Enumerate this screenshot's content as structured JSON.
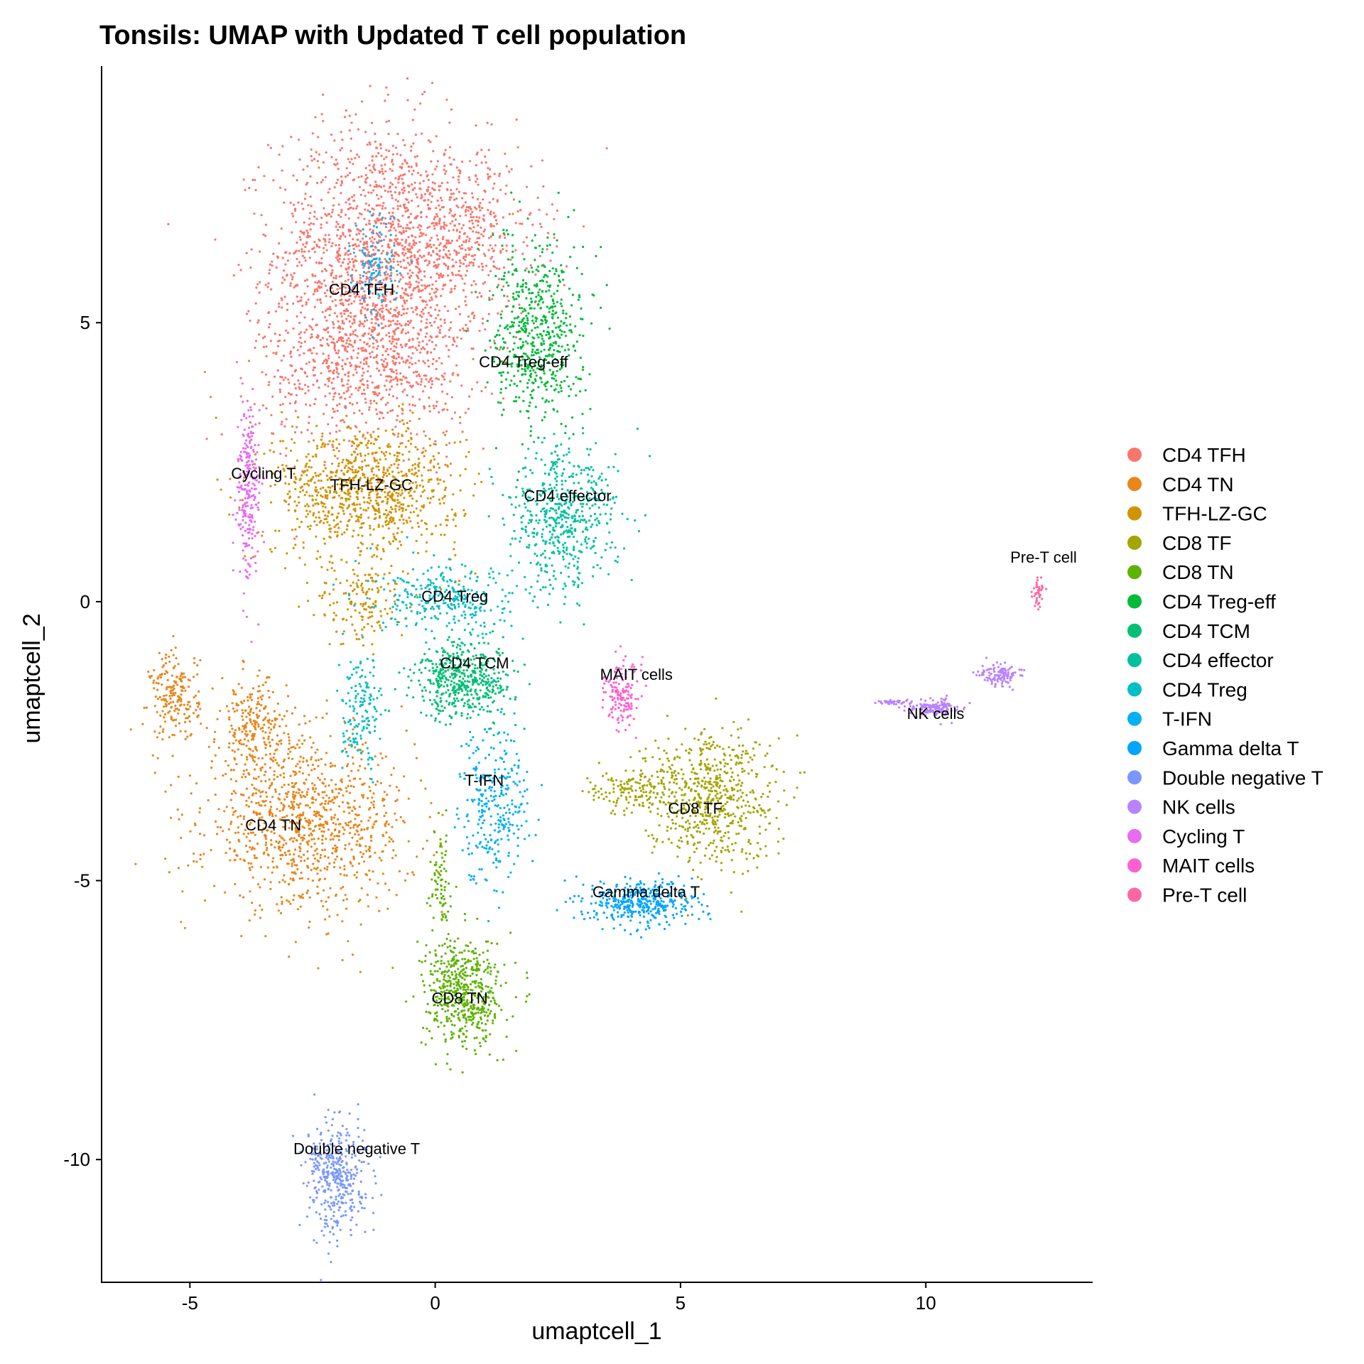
{
  "chart_data": {
    "type": "scatter",
    "title": "Tonsils: UMAP with Updated T cell population",
    "xlabel": "umaptcell_1",
    "ylabel": "umaptcell_2",
    "xlim": [
      -6.8,
      13.4
    ],
    "ylim": [
      -12.2,
      9.6
    ],
    "xticks": [
      -5,
      0,
      5,
      10
    ],
    "yticks": [
      -10,
      -5,
      0,
      5
    ],
    "xtick_labels": [
      "-5",
      "0",
      "5",
      "10"
    ],
    "ytick_labels": [
      "-10",
      "-5",
      "0",
      "5"
    ],
    "grid": false,
    "legend_position": "right",
    "clusters": [
      {
        "name": "CD4 TFH",
        "color": "#F8766D",
        "label_at": [
          -1.5,
          5.5
        ],
        "blobs": [
          [
            -1.2,
            6.2,
            2.1,
            2.4,
            1500
          ],
          [
            -1.4,
            4.3,
            2.2,
            1.5,
            700
          ],
          [
            0.6,
            6.6,
            1.6,
            1.4,
            400
          ]
        ]
      },
      {
        "name": "CD4 TN",
        "color": "#E7861B",
        "label_at": [
          -3.3,
          -4.1
        ],
        "blobs": [
          [
            -2.6,
            -4.0,
            2.1,
            1.5,
            1000
          ],
          [
            -5.3,
            -1.7,
            0.5,
            0.8,
            200
          ],
          [
            -3.7,
            -2.3,
            0.7,
            0.9,
            250
          ]
        ]
      },
      {
        "name": "TFH-LZ-GC",
        "color": "#D39200",
        "label_at": [
          -1.3,
          2.0
        ],
        "blobs": [
          [
            -1.4,
            2.0,
            1.9,
            1.2,
            900
          ],
          [
            -1.5,
            0.0,
            0.9,
            0.8,
            150
          ]
        ]
      },
      {
        "name": "CD8 TF",
        "color": "#A3A500",
        "label_at": [
          5.3,
          -3.8
        ],
        "blobs": [
          [
            5.6,
            -3.5,
            1.3,
            1.2,
            650
          ],
          [
            4.0,
            -3.4,
            0.9,
            0.4,
            150
          ]
        ]
      },
      {
        "name": "CD8 TN",
        "color": "#5EB300",
        "label_at": [
          0.5,
          -7.2
        ],
        "blobs": [
          [
            0.6,
            -7.0,
            0.8,
            1.0,
            550
          ],
          [
            0.1,
            -5.0,
            0.2,
            0.9,
            80
          ]
        ]
      },
      {
        "name": "CD4 Treg-eff",
        "color": "#00BA38",
        "label_at": [
          1.8,
          4.2
        ],
        "blobs": [
          [
            2.1,
            4.8,
            0.9,
            1.6,
            600
          ]
        ]
      },
      {
        "name": "CD4 TCM",
        "color": "#00BF74",
        "label_at": [
          0.8,
          -1.2
        ],
        "blobs": [
          [
            0.6,
            -1.4,
            1.0,
            0.7,
            500
          ]
        ]
      },
      {
        "name": "CD4 effector",
        "color": "#00C19F",
        "label_at": [
          2.7,
          1.8
        ],
        "blobs": [
          [
            2.6,
            1.5,
            1.1,
            1.3,
            550
          ]
        ]
      },
      {
        "name": "CD4 Treg",
        "color": "#00BFC4",
        "label_at": [
          0.4,
          0.0
        ],
        "blobs": [
          [
            0.3,
            0.0,
            1.5,
            0.6,
            300
          ],
          [
            -1.5,
            -2.0,
            0.4,
            1.0,
            150
          ]
        ]
      },
      {
        "name": "T-IFN",
        "color": "#00B0F6",
        "label_at": [
          1.0,
          -3.3
        ],
        "blobs": [
          [
            1.2,
            -3.6,
            0.7,
            1.4,
            300
          ],
          [
            -1.2,
            6.0,
            0.5,
            0.9,
            120
          ]
        ]
      },
      {
        "name": "Gamma delta T",
        "color": "#00A5FF",
        "label_at": [
          4.3,
          -5.3
        ],
        "blobs": [
          [
            4.2,
            -5.4,
            1.1,
            0.4,
            400
          ]
        ]
      },
      {
        "name": "Double negative T",
        "color": "#7997FF",
        "label_at": [
          -1.6,
          -9.9
        ],
        "blobs": [
          [
            -2.0,
            -10.3,
            0.6,
            1.0,
            400
          ]
        ]
      },
      {
        "name": "NK cells",
        "color": "#B983FF",
        "label_at": [
          10.2,
          -2.1
        ],
        "blobs": [
          [
            10.2,
            -1.9,
            0.5,
            0.15,
            150
          ],
          [
            11.5,
            -1.3,
            0.4,
            0.2,
            120
          ],
          [
            9.3,
            -1.8,
            0.3,
            0.04,
            40
          ]
        ]
      },
      {
        "name": "Cycling T",
        "color": "#E76BF3",
        "label_at": [
          -3.5,
          2.2
        ],
        "blobs": [
          [
            -3.8,
            2.0,
            0.25,
            1.6,
            250
          ]
        ]
      },
      {
        "name": "MAIT cells",
        "color": "#FD61D1",
        "label_at": [
          4.1,
          -1.4
        ],
        "blobs": [
          [
            3.8,
            -1.7,
            0.35,
            0.6,
            150
          ]
        ]
      },
      {
        "name": "Pre-T cell",
        "color": "#FF67A4",
        "label_at": [
          12.4,
          0.7
        ],
        "blobs": [
          [
            12.3,
            0.2,
            0.12,
            0.35,
            40
          ]
        ]
      }
    ]
  }
}
